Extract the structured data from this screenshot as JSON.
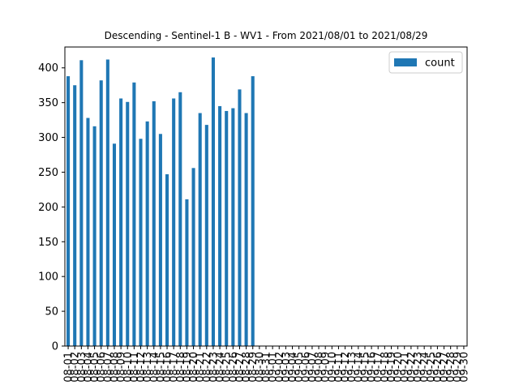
{
  "chart_data": {
    "type": "bar",
    "title": "Descending - Sentinel-1 B - WV1 - From 2021/08/01 to 2021/08/29",
    "xlabel": "",
    "ylabel": "",
    "ylim": [
      0,
      430
    ],
    "yticks": [
      0,
      50,
      100,
      150,
      200,
      250,
      300,
      350,
      400
    ],
    "legend": {
      "position": "top-right",
      "entries": [
        "count"
      ]
    },
    "grid": false,
    "bar_color": "#1f77b4",
    "categories": [
      "08-01",
      "08-02",
      "08-03",
      "08-04",
      "08-05",
      "08-06",
      "08-07",
      "08-08",
      "08-09",
      "08-10",
      "08-11",
      "08-12",
      "08-13",
      "08-14",
      "08-15",
      "08-16",
      "08-17",
      "08-18",
      "08-19",
      "08-20",
      "08-21",
      "08-22",
      "08-23",
      "08-24",
      "08-25",
      "08-26",
      "08-27",
      "08-28",
      "08-29",
      "08-30",
      "08-31",
      "09-01",
      "09-02",
      "09-03",
      "09-04",
      "09-05",
      "09-06",
      "09-07",
      "09-08",
      "09-09",
      "09-10",
      "09-11",
      "09-12",
      "09-13",
      "09-14",
      "09-15",
      "09-16",
      "09-17",
      "09-18",
      "09-19",
      "09-20",
      "09-21",
      "09-22",
      "09-23",
      "09-24",
      "09-25",
      "09-26",
      "09-27",
      "09-28",
      "09-29",
      "09-30"
    ],
    "series": [
      {
        "name": "count",
        "values": [
          388,
          375,
          411,
          328,
          316,
          382,
          412,
          291,
          356,
          351,
          379,
          298,
          323,
          352,
          305,
          247,
          356,
          365,
          211,
          256,
          335,
          318,
          415,
          345,
          338,
          342,
          369,
          335,
          388,
          null,
          null,
          null,
          null,
          null,
          null,
          null,
          null,
          null,
          null,
          null,
          null,
          null,
          null,
          null,
          null,
          null,
          null,
          null,
          null,
          null,
          null,
          null,
          null,
          null,
          null,
          null,
          null,
          null,
          null,
          null,
          null
        ]
      }
    ]
  }
}
